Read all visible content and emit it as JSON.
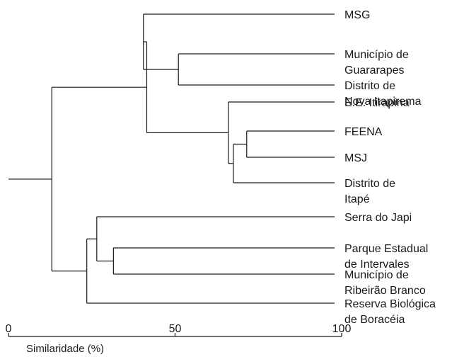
{
  "diagram": {
    "type": "dendrogram",
    "leaves": [
      {
        "id": "msg",
        "lines": [
          "MSG"
        ]
      },
      {
        "id": "guararapes",
        "lines": [
          "Município de",
          "Guararapes"
        ]
      },
      {
        "id": "nova-itapirema",
        "lines": [
          "Distrito de",
          "Nova Itapirema"
        ]
      },
      {
        "id": "itirapina",
        "lines": [
          "E.E. Itirapina"
        ]
      },
      {
        "id": "feena",
        "lines": [
          "FEENA"
        ]
      },
      {
        "id": "msj",
        "lines": [
          "MSJ"
        ]
      },
      {
        "id": "itape",
        "lines": [
          "Distrito de",
          "Itapé"
        ]
      },
      {
        "id": "serra-japi",
        "lines": [
          "Serra do Japi"
        ]
      },
      {
        "id": "intervales",
        "lines": [
          "Parque Estadual",
          "de Intervales"
        ]
      },
      {
        "id": "ribeirao-branco",
        "lines": [
          "Município de",
          "Ribeirão Branco"
        ]
      },
      {
        "id": "boraceia",
        "lines": [
          "Reserva Biológica",
          "de Boracéia"
        ]
      }
    ],
    "merges": [
      {
        "id": "n1",
        "children": [
          "guararapes",
          "nova-itapirema"
        ],
        "similarity": 51
      },
      {
        "id": "n2",
        "children": [
          "msg",
          "n1"
        ],
        "similarity": 40.5
      },
      {
        "id": "n3",
        "children": [
          "feena",
          "msj"
        ],
        "similarity": 71.5
      },
      {
        "id": "n4",
        "children": [
          "n3",
          "itape"
        ],
        "similarity": 67.5
      },
      {
        "id": "n5",
        "children": [
          "itirapina",
          "n4"
        ],
        "similarity": 66
      },
      {
        "id": "n6",
        "children": [
          "n2",
          "n5"
        ],
        "similarity": 41.5
      },
      {
        "id": "n7",
        "children": [
          "intervales",
          "ribeirao-branco"
        ],
        "similarity": 31.5
      },
      {
        "id": "n8",
        "children": [
          "serra-japi",
          "n7"
        ],
        "similarity": 26.5
      },
      {
        "id": "n9",
        "children": [
          "n8",
          "boraceia"
        ],
        "similarity": 23.5
      },
      {
        "id": "root",
        "children": [
          "n6",
          "n9"
        ],
        "similarity": 13
      }
    ],
    "axis": {
      "title": "Similaridade (%)",
      "range": [
        0,
        100
      ],
      "ticks": [
        0,
        50,
        100
      ]
    }
  }
}
